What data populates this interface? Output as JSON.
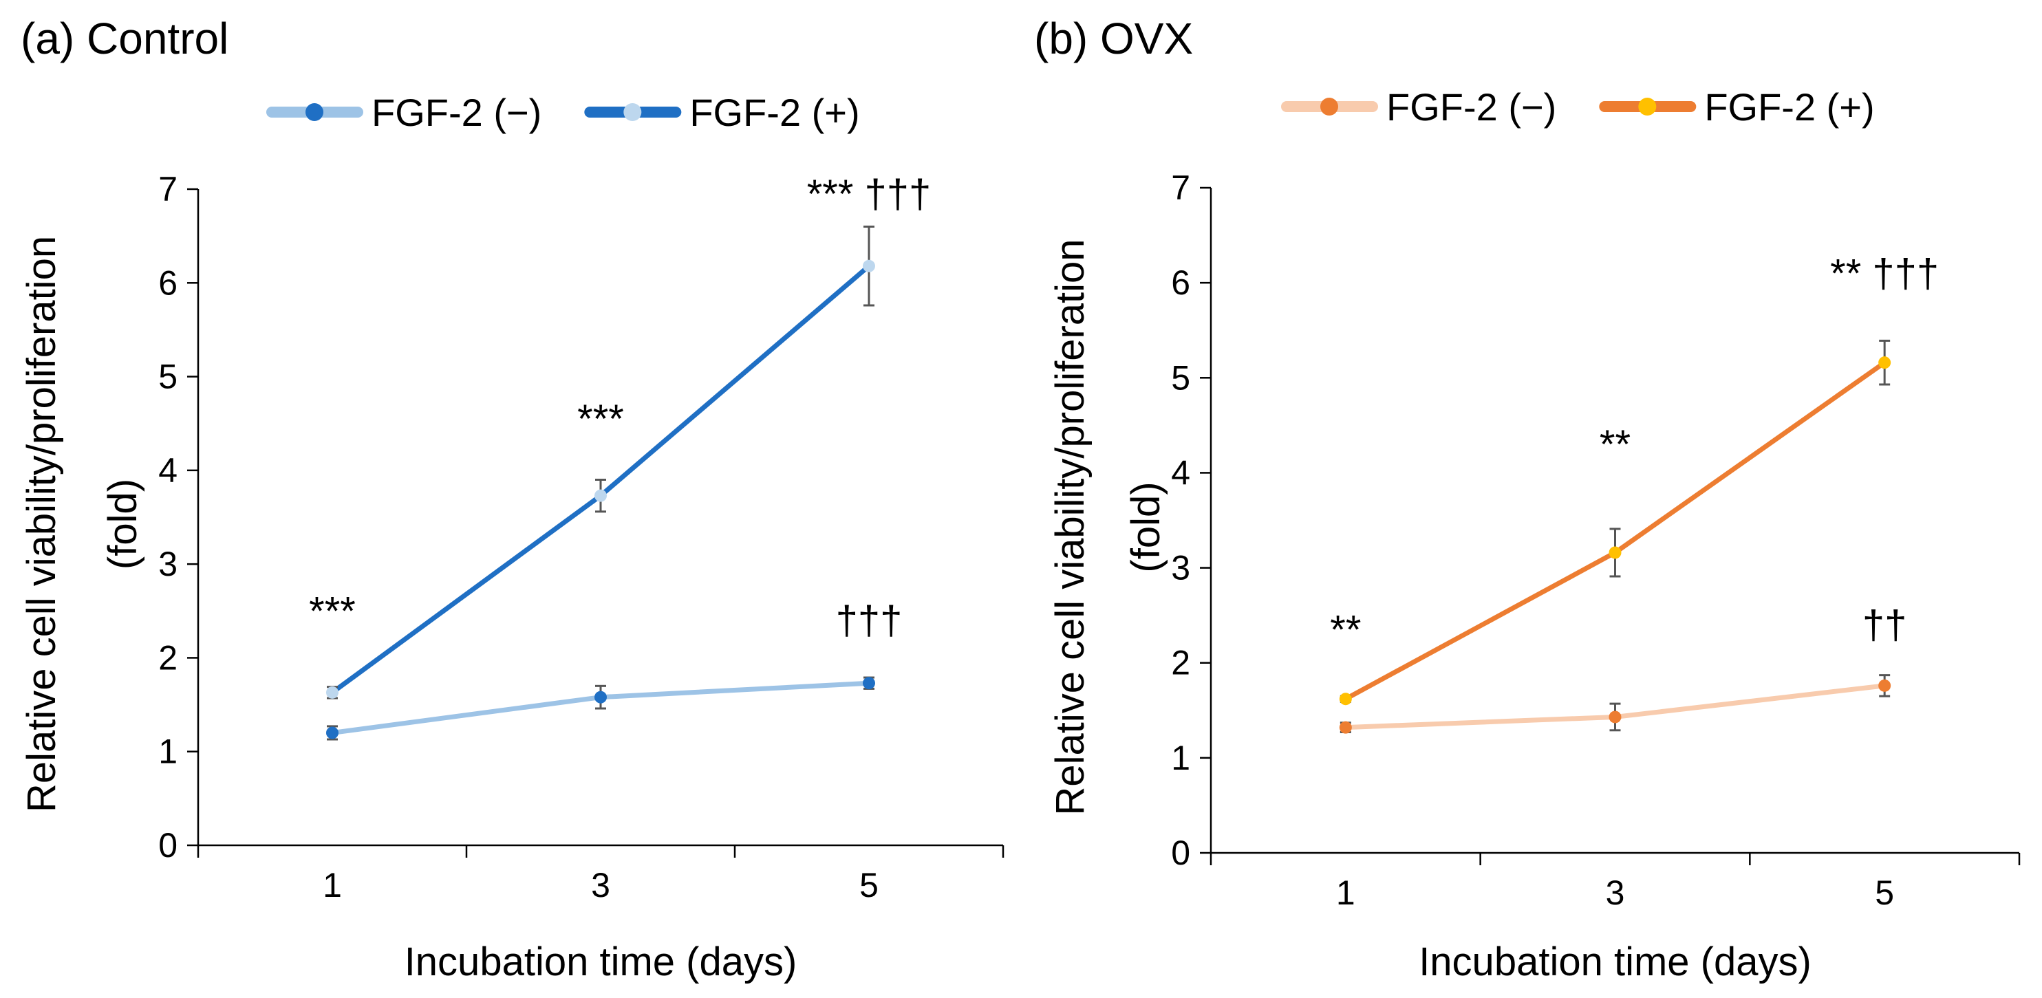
{
  "chart_data": [
    {
      "type": "line",
      "title": "(a) Control",
      "xlabel": "Incubation time (days)",
      "ylabel_lines": [
        "Relative cell viability/proliferation",
        "(fold)"
      ],
      "categories": [
        "1",
        "3",
        "5"
      ],
      "ylim": [
        0,
        7
      ],
      "yticks": [
        "0",
        "1",
        "2",
        "3",
        "4",
        "5",
        "6",
        "7"
      ],
      "legend_position": "top",
      "series": [
        {
          "name": "FGF-2 (−)",
          "values": [
            1.2,
            1.58,
            1.73
          ],
          "errors": [
            0.07,
            0.12,
            0.06
          ],
          "line_color": "#9DC3E6",
          "marker_color": "#1F6FC4"
        },
        {
          "name": "FGF-2 (+)",
          "values": [
            1.63,
            3.73,
            6.18
          ],
          "errors": [
            0.06,
            0.17,
            0.42
          ],
          "line_color": "#1F6FC4",
          "marker_color": "#BDD7EE"
        }
      ],
      "annotations": [
        {
          "text": "***",
          "category": "1",
          "value": 2.5
        },
        {
          "text": "***",
          "category": "3",
          "value": 4.55
        },
        {
          "text": "*** †††",
          "category": "5",
          "value": 6.95
        },
        {
          "text": "†††",
          "category": "5",
          "value": 2.4
        }
      ]
    },
    {
      "type": "line",
      "title": "(b) OVX",
      "xlabel": "Incubation time (days)",
      "ylabel_lines": [
        "Relative cell viability/proliferation",
        "(fold)"
      ],
      "categories": [
        "1",
        "3",
        "5"
      ],
      "ylim": [
        0,
        7
      ],
      "yticks": [
        "0",
        "1",
        "2",
        "3",
        "4",
        "5",
        "6",
        "7"
      ],
      "legend_position": "top",
      "series": [
        {
          "name": "FGF-2 (−)",
          "values": [
            1.32,
            1.43,
            1.76
          ],
          "errors": [
            0.05,
            0.14,
            0.11
          ],
          "line_color": "#F8CBAD",
          "marker_color": "#ED7D31"
        },
        {
          "name": "FGF-2 (+)",
          "values": [
            1.62,
            3.16,
            5.16
          ],
          "errors": [
            0.03,
            0.25,
            0.23
          ],
          "line_color": "#ED7D31",
          "marker_color": "#FFC000"
        }
      ],
      "annotations": [
        {
          "text": "**",
          "category": "1",
          "value": 2.35
        },
        {
          "text": "**",
          "category": "3",
          "value": 4.3
        },
        {
          "text": "**  †††",
          "category": "5",
          "value": 6.1
        },
        {
          "text": "††",
          "category": "5",
          "value": 2.4
        }
      ]
    }
  ]
}
